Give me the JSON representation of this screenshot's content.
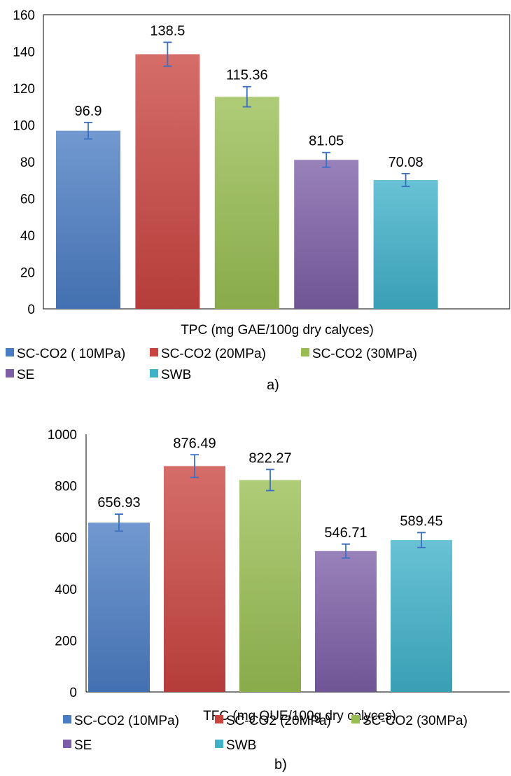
{
  "chart_data": [
    {
      "type": "bar",
      "panel_label": "a)",
      "xlabel": "TPC (mg GAE/100g dry calyces)",
      "ylim": [
        0,
        160
      ],
      "yticks": [
        0,
        20,
        40,
        60,
        80,
        100,
        120,
        140,
        160
      ],
      "grid": false,
      "legend_position": "bottom",
      "series": [
        {
          "name": "SC-CO2 ( 10MPa)",
          "value": 96.9,
          "label": "96.9",
          "error": 4.5,
          "color": "#4a7cc3"
        },
        {
          "name": "SC-CO2 (20MPa)",
          "value": 138.5,
          "label": "138.5",
          "error": 6.5,
          "color": "#c9443f"
        },
        {
          "name": "SC-CO2 (30MPa)",
          "value": 115.36,
          "label": "115.36",
          "error": 5.5,
          "color": "#98be52"
        },
        {
          "name": "SE",
          "value": 81.05,
          "label": "81.05",
          "error": 4,
          "color": "#7c5ea6"
        },
        {
          "name": "SWB",
          "value": 70.08,
          "label": "70.08",
          "error": 3.5,
          "color": "#3fb1c9"
        }
      ]
    },
    {
      "type": "bar",
      "panel_label": "b)",
      "xlabel": "TFC (mg QUE/100g dry calyces)",
      "ylim": [
        0,
        1000
      ],
      "yticks": [
        0,
        200,
        400,
        600,
        800,
        1000
      ],
      "grid": false,
      "legend_position": "bottom",
      "series": [
        {
          "name": "SC-CO2 (10MPa)",
          "value": 656.93,
          "label": "656.93",
          "error": 33,
          "color": "#4a7cc3"
        },
        {
          "name": "SC-CO2 (20MPa)",
          "value": 876.49,
          "label": "876.49",
          "error": 44,
          "color": "#c9443f"
        },
        {
          "name": "SC-CO2 (30MPa)",
          "value": 822.27,
          "label": "822.27",
          "error": 41,
          "color": "#98be52"
        },
        {
          "name": "SE",
          "value": 546.71,
          "label": "546.71",
          "error": 27,
          "color": "#7c5ea6"
        },
        {
          "name": "SWB",
          "value": 589.45,
          "label": "589.45",
          "error": 29,
          "color": "#3fb1c9"
        }
      ]
    }
  ]
}
